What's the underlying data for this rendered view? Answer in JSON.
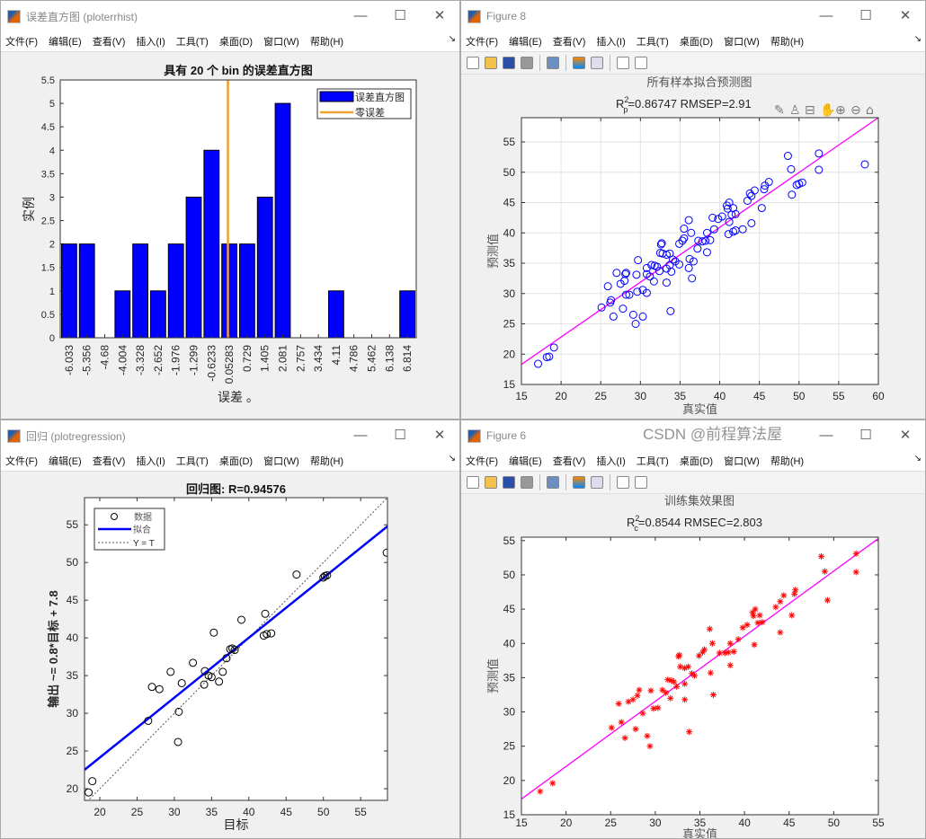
{
  "menu": [
    "文件(F)",
    "编辑(E)",
    "查看(V)",
    "插入(I)",
    "工具(T)",
    "桌面(D)",
    "窗口(W)",
    "帮助(H)"
  ],
  "window_buttons": {
    "minimize": "—",
    "maximize": "☐",
    "close": "✕"
  },
  "windows": {
    "hist": {
      "title": "误差直方图 (ploterrhist)"
    },
    "fig8": {
      "title": "Figure 8"
    },
    "reg": {
      "title": "回归 (plotregression)"
    },
    "fig6": {
      "title": "Figure 6"
    }
  },
  "watermark": "CSDN @前程算法屋",
  "colors": {
    "bar": "#0000ff",
    "zero_line": "#f0a030",
    "fit_magenta": "#ff00ff",
    "scatter_blue": "#0000ff",
    "star_red": "#ff0000",
    "reg_fit": "#0000ff"
  },
  "chart_data": [
    {
      "id": "hist",
      "type": "bar",
      "title": "具有 20 个 bin 的误差直方图",
      "xlabel": "误差 。",
      "ylabel": "实例",
      "categories": [
        "-6.033",
        "-5.356",
        "-4.68",
        "-4.004",
        "-3.328",
        "-2.652",
        "-1.976",
        "-1.299",
        "-0.6233",
        "0.05283",
        "0.729",
        "1.405",
        "2.081",
        "2.757",
        "3.434",
        "4.11",
        "4.786",
        "5.462",
        "6.138",
        "6.814"
      ],
      "values": [
        2,
        2,
        0,
        1,
        2,
        1,
        2,
        3,
        4,
        2,
        2,
        3,
        5,
        0,
        0,
        1,
        0,
        0,
        0,
        1
      ],
      "ylim": [
        0,
        5.5
      ],
      "yticks": [
        "0",
        "0.5",
        "1",
        "1.5",
        "2",
        "2.5",
        "3",
        "3.5",
        "4",
        "4.5",
        "5",
        "5.5"
      ],
      "zero_error_x": 0,
      "legend": [
        "误差直方图",
        "零误差"
      ],
      "legend_position": "top-right"
    },
    {
      "id": "fig8",
      "type": "scatter",
      "title": "所有样本拟合预测图",
      "subtitle": {
        "r": "R",
        "sup": "2",
        "sub": "p",
        "rest": "=0.86747  RMSEP=2.91"
      },
      "xlabel": "真实值",
      "ylabel": "预测值",
      "xlim": [
        15,
        60
      ],
      "ylim": [
        15,
        59
      ],
      "xticks": [
        "15",
        "20",
        "25",
        "30",
        "35",
        "40",
        "45",
        "50",
        "55",
        "60"
      ],
      "yticks": [
        "15",
        "20",
        "25",
        "30",
        "35",
        "40",
        "45",
        "50",
        "55"
      ],
      "grid": true,
      "fit": [
        [
          15,
          18.3
        ],
        [
          60,
          59
        ]
      ],
      "points": [
        [
          17.1,
          18.4
        ],
        [
          18.2,
          19.5
        ],
        [
          18.5,
          19.6
        ],
        [
          19.1,
          21.1
        ],
        [
          25.1,
          27.7
        ],
        [
          25.9,
          31.2
        ],
        [
          26.2,
          28.5
        ],
        [
          26.3,
          28.9
        ],
        [
          26.6,
          26.2
        ],
        [
          27.0,
          33.4
        ],
        [
          27.5,
          31.6
        ],
        [
          27.8,
          27.5
        ],
        [
          28.0,
          32.1
        ],
        [
          28.1,
          33.2
        ],
        [
          28.2,
          33.4
        ],
        [
          28.2,
          29.8
        ],
        [
          28.6,
          29.8
        ],
        [
          29.1,
          26.5
        ],
        [
          29.4,
          25.0
        ],
        [
          29.5,
          33.1
        ],
        [
          29.6,
          30.3
        ],
        [
          29.7,
          35.5
        ],
        [
          30.3,
          30.6
        ],
        [
          30.3,
          26.2
        ],
        [
          30.8,
          30.1
        ],
        [
          30.8,
          33.2
        ],
        [
          30.8,
          34.2
        ],
        [
          31.2,
          32.8
        ],
        [
          31.4,
          34.7
        ],
        [
          31.7,
          32.0
        ],
        [
          31.8,
          34.6
        ],
        [
          32.1,
          34.4
        ],
        [
          32.4,
          33.7
        ],
        [
          32.5,
          36.7
        ],
        [
          32.6,
          38.1
        ],
        [
          32.7,
          38.3
        ],
        [
          32.8,
          36.6
        ],
        [
          33.3,
          34.1
        ],
        [
          33.3,
          31.8
        ],
        [
          33.3,
          36.4
        ],
        [
          33.7,
          34.7
        ],
        [
          33.7,
          36.6
        ],
        [
          33.8,
          27.1
        ],
        [
          33.9,
          33.6
        ],
        [
          34.1,
          35.6
        ],
        [
          34.4,
          35.3
        ],
        [
          34.9,
          34.8
        ],
        [
          34.9,
          38.2
        ],
        [
          35.3,
          38.7
        ],
        [
          35.5,
          40.7
        ],
        [
          35.5,
          39.1
        ],
        [
          36.1,
          42.1
        ],
        [
          36.1,
          34.2
        ],
        [
          36.2,
          35.7
        ],
        [
          36.4,
          40.0
        ],
        [
          36.5,
          32.5
        ],
        [
          36.7,
          35.3
        ],
        [
          37.2,
          37.4
        ],
        [
          37.3,
          38.7
        ],
        [
          37.8,
          38.6
        ],
        [
          38.2,
          38.7
        ],
        [
          38.4,
          36.8
        ],
        [
          38.4,
          40.0
        ],
        [
          38.8,
          38.8
        ],
        [
          39.1,
          42.5
        ],
        [
          39.3,
          40.6
        ],
        [
          39.8,
          42.3
        ],
        [
          40.3,
          42.7
        ],
        [
          40.9,
          44.5
        ],
        [
          41.0,
          44.0
        ],
        [
          41.1,
          39.8
        ],
        [
          41.2,
          45.0
        ],
        [
          41.2,
          41.8
        ],
        [
          41.5,
          43.0
        ],
        [
          41.7,
          44.1
        ],
        [
          41.7,
          40.2
        ],
        [
          42.0,
          40.4
        ],
        [
          42.0,
          43.1
        ],
        [
          42.9,
          40.6
        ],
        [
          43.5,
          45.3
        ],
        [
          43.8,
          46.5
        ],
        [
          44.0,
          46.1
        ],
        [
          44.0,
          41.6
        ],
        [
          44.4,
          47.0
        ],
        [
          45.3,
          44.1
        ],
        [
          45.6,
          47.2
        ],
        [
          45.7,
          47.8
        ],
        [
          46.2,
          48.4
        ],
        [
          48.6,
          52.7
        ],
        [
          49.0,
          50.5
        ],
        [
          49.1,
          46.3
        ],
        [
          49.7,
          47.9
        ],
        [
          50.0,
          48.1
        ],
        [
          50.4,
          48.3
        ],
        [
          52.5,
          53.1
        ],
        [
          52.5,
          50.4
        ],
        [
          58.3,
          51.3
        ]
      ]
    },
    {
      "id": "reg",
      "type": "scatter",
      "title": "回归图: R=0.94576",
      "xlabel": "目标",
      "ylabel": "输出 ~= 0.8*目标 + 7.8",
      "xlim": [
        17.95,
        58.6
      ],
      "ylim": [
        18.45,
        58.6
      ],
      "xticks": [
        "20",
        "25",
        "30",
        "35",
        "40",
        "45",
        "50",
        "55"
      ],
      "yticks": [
        "20",
        "25",
        "30",
        "35",
        "40",
        "45",
        "50",
        "55"
      ],
      "legend": [
        "数据",
        "拟合",
        "Y = T"
      ],
      "legend_position": "top-left",
      "fit": [
        [
          17.95,
          22.5
        ],
        [
          58.6,
          54.8
        ]
      ],
      "identity": [
        [
          17.95,
          17.95
        ],
        [
          58.6,
          58.6
        ]
      ],
      "points": [
        [
          18.5,
          19.5
        ],
        [
          19,
          21
        ],
        [
          26.5,
          29
        ],
        [
          27,
          33.5
        ],
        [
          28,
          33.2
        ],
        [
          29.5,
          35.5
        ],
        [
          30.5,
          26.2
        ],
        [
          30.6,
          30.2
        ],
        [
          31,
          34
        ],
        [
          32.5,
          36.7
        ],
        [
          34,
          33.8
        ],
        [
          34.1,
          35.6
        ],
        [
          34.6,
          35
        ],
        [
          35,
          34.8
        ],
        [
          35.3,
          40.7
        ],
        [
          36,
          34.2
        ],
        [
          36.5,
          35.5
        ],
        [
          37,
          37.3
        ],
        [
          37.5,
          38.5
        ],
        [
          37.8,
          38.6
        ],
        [
          38.1,
          38.4
        ],
        [
          39,
          42.4
        ],
        [
          42,
          40.3
        ],
        [
          42.2,
          43.2
        ],
        [
          42.4,
          40.5
        ],
        [
          43,
          40.6
        ],
        [
          46.4,
          48.4
        ],
        [
          50,
          48
        ],
        [
          50.2,
          48.2
        ],
        [
          50.5,
          48.3
        ],
        [
          58.5,
          51.3
        ]
      ]
    },
    {
      "id": "fig6",
      "type": "scatter",
      "title": "训练集效果图",
      "subtitle": {
        "r": "R",
        "sup": "2",
        "sub": "c",
        "rest": "=0.8544  RMSEC=2.803"
      },
      "xlabel": "真实值",
      "ylabel": "预测值",
      "xlim": [
        15,
        55
      ],
      "ylim": [
        15,
        55.5
      ],
      "xticks": [
        "15",
        "20",
        "25",
        "30",
        "35",
        "40",
        "45",
        "50",
        "55"
      ],
      "yticks": [
        "15",
        "20",
        "25",
        "30",
        "35",
        "40",
        "45",
        "50",
        "55"
      ],
      "fit": [
        [
          15,
          17.3
        ],
        [
          55,
          55.3
        ]
      ],
      "points": [
        [
          17.1,
          18.4
        ],
        [
          18.5,
          19.6
        ],
        [
          25.1,
          27.7
        ],
        [
          25.9,
          31.2
        ],
        [
          26.2,
          28.5
        ],
        [
          26.6,
          26.2
        ],
        [
          27.0,
          31.5
        ],
        [
          27.5,
          31.8
        ],
        [
          27.8,
          27.5
        ],
        [
          28.0,
          32.4
        ],
        [
          28.2,
          33.2
        ],
        [
          28.6,
          29.8
        ],
        [
          29.1,
          26.5
        ],
        [
          29.4,
          25.0
        ],
        [
          29.5,
          33.1
        ],
        [
          29.8,
          30.5
        ],
        [
          30.3,
          30.6
        ],
        [
          30.8,
          33.2
        ],
        [
          31.2,
          32.8
        ],
        [
          31.4,
          34.7
        ],
        [
          31.7,
          32.0
        ],
        [
          31.8,
          34.6
        ],
        [
          32.1,
          34.4
        ],
        [
          32.4,
          33.7
        ],
        [
          32.6,
          38.1
        ],
        [
          32.7,
          38.3
        ],
        [
          32.8,
          36.6
        ],
        [
          33.3,
          34.1
        ],
        [
          33.3,
          31.8
        ],
        [
          33.3,
          36.4
        ],
        [
          33.7,
          36.6
        ],
        [
          33.8,
          27.1
        ],
        [
          34.1,
          35.6
        ],
        [
          34.4,
          35.3
        ],
        [
          34.9,
          38.2
        ],
        [
          35.3,
          38.7
        ],
        [
          35.5,
          39.1
        ],
        [
          36.1,
          42.1
        ],
        [
          36.2,
          35.7
        ],
        [
          36.4,
          40.0
        ],
        [
          36.5,
          32.5
        ],
        [
          37.2,
          38.6
        ],
        [
          37.8,
          38.6
        ],
        [
          38.2,
          38.7
        ],
        [
          38.4,
          36.8
        ],
        [
          38.4,
          40.0
        ],
        [
          38.8,
          38.8
        ],
        [
          39.3,
          40.6
        ],
        [
          39.8,
          42.3
        ],
        [
          40.3,
          42.7
        ],
        [
          40.9,
          44.5
        ],
        [
          41.0,
          44.0
        ],
        [
          41.1,
          39.8
        ],
        [
          41.2,
          45.0
        ],
        [
          41.5,
          43.0
        ],
        [
          41.7,
          44.1
        ],
        [
          42.0,
          43.1
        ],
        [
          43.5,
          45.3
        ],
        [
          44.0,
          46.1
        ],
        [
          44.0,
          41.6
        ],
        [
          44.4,
          47.0
        ],
        [
          45.3,
          44.1
        ],
        [
          45.6,
          47.2
        ],
        [
          45.7,
          47.8
        ],
        [
          48.6,
          52.7
        ],
        [
          49.0,
          50.5
        ],
        [
          49.3,
          46.3
        ],
        [
          52.5,
          53.1
        ],
        [
          52.5,
          50.4
        ]
      ]
    }
  ]
}
